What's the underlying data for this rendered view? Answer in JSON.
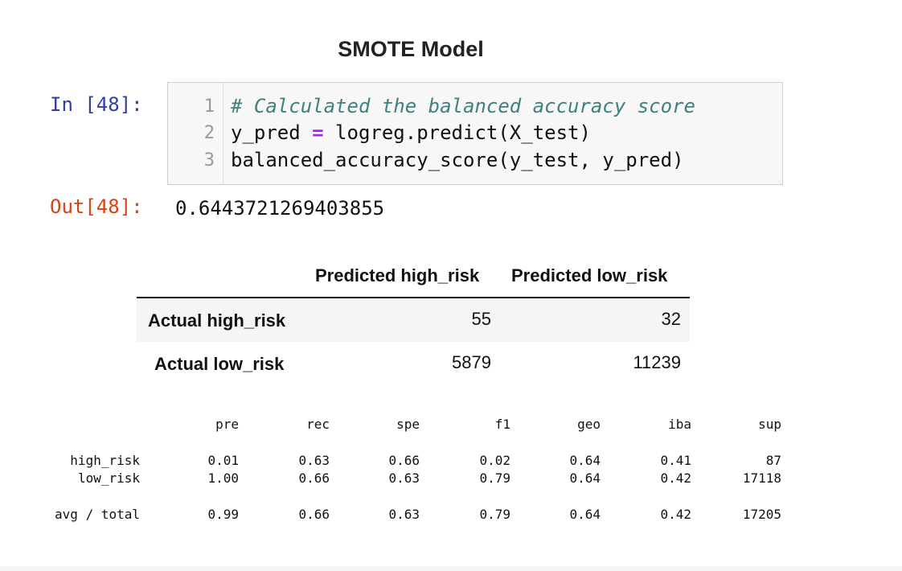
{
  "title": "SMOTE Model",
  "cell": {
    "in_prompt": "In [48]:",
    "out_prompt": "Out[48]:",
    "line_numbers": [
      "1",
      "2",
      "3"
    ],
    "comment": "# Calculated the balanced accuracy score",
    "line2_lhs": "y_pred ",
    "line2_op": "=",
    "line2_rhs": " logreg.predict(X_test)",
    "line3": "balanced_accuracy_score(y_test, y_pred)",
    "output": "0.6443721269403855"
  },
  "confusion_matrix": {
    "columns": [
      "Predicted high_risk",
      "Predicted low_risk"
    ],
    "rows": [
      {
        "label": "Actual high_risk",
        "values": [
          "55",
          "32"
        ]
      },
      {
        "label": "Actual low_risk",
        "values": [
          "5879",
          "11239"
        ]
      }
    ]
  },
  "report": {
    "headers": [
      "pre",
      "rec",
      "spe",
      "f1",
      "geo",
      "iba",
      "sup"
    ],
    "rows": [
      {
        "label": "high_risk",
        "values": [
          "0.01",
          "0.63",
          "0.66",
          "0.02",
          "0.64",
          "0.41",
          "87"
        ]
      },
      {
        "label": "low_risk",
        "values": [
          "1.00",
          "0.66",
          "0.63",
          "0.79",
          "0.64",
          "0.42",
          "17118"
        ]
      },
      {
        "label": "avg / total",
        "values": [
          "0.99",
          "0.66",
          "0.63",
          "0.79",
          "0.64",
          "0.42",
          "17205"
        ]
      }
    ]
  }
}
